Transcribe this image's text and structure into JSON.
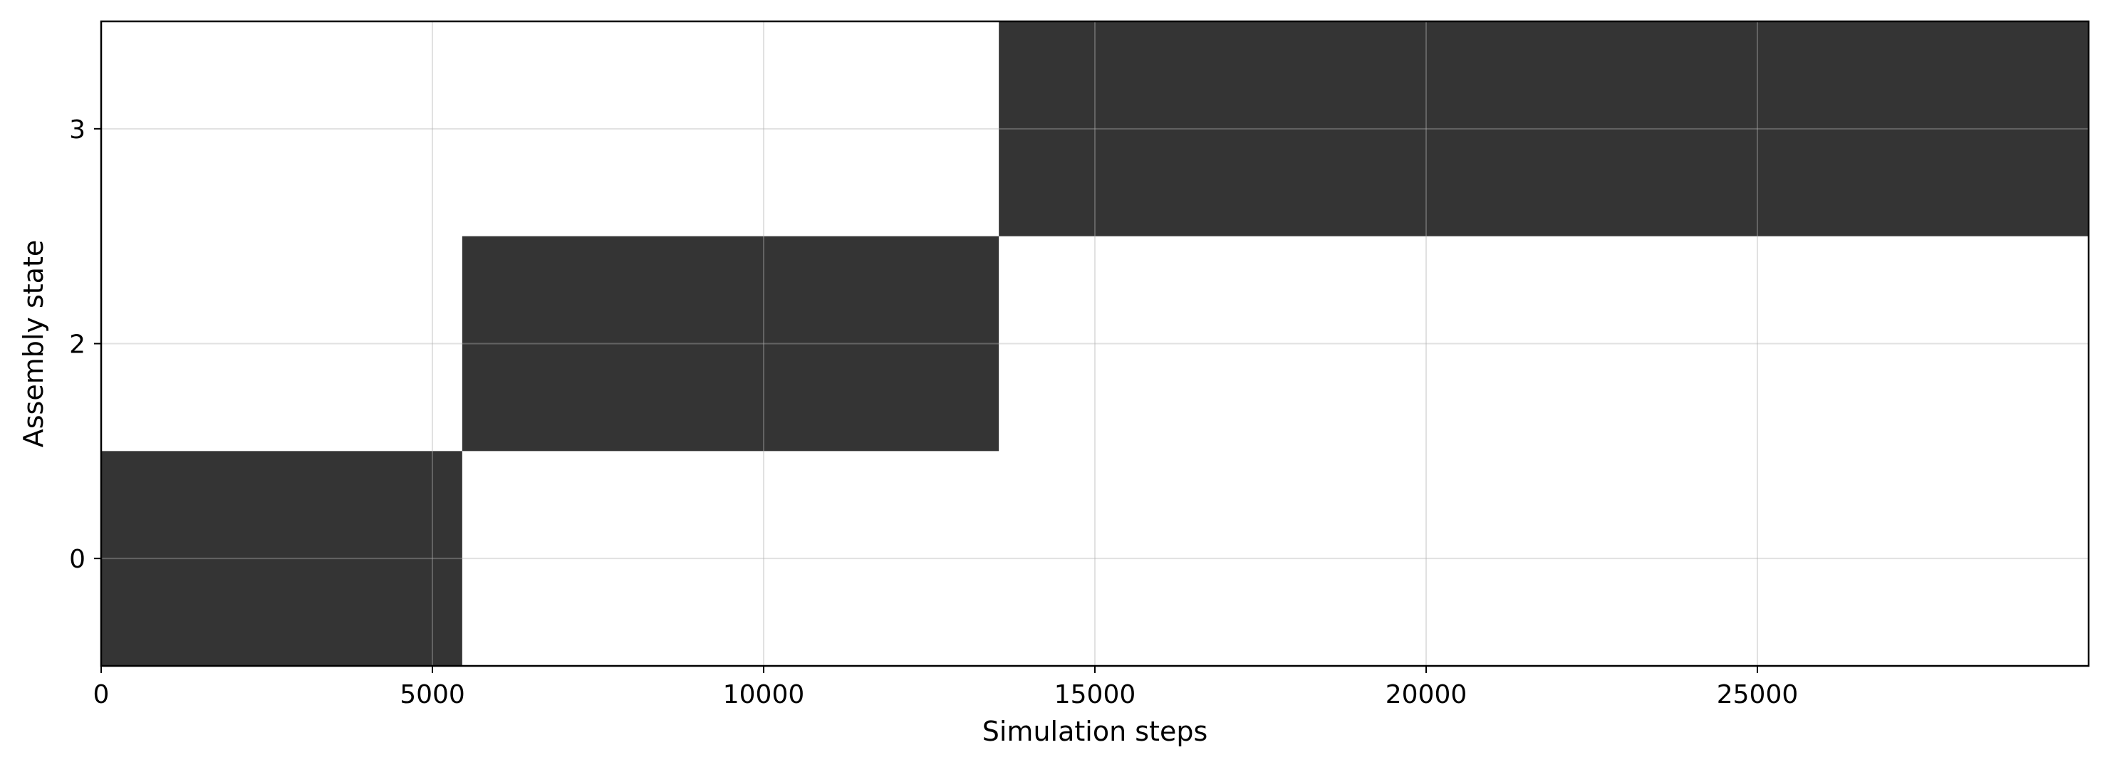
{
  "chart_data": {
    "type": "heatmap",
    "title": "",
    "xlabel": "Simulation steps",
    "ylabel": "Assembly state",
    "xlim": [
      0,
      30000
    ],
    "x_ticks": [
      0,
      5000,
      10000,
      15000,
      20000,
      25000
    ],
    "y_tick_labels": [
      "0",
      "2",
      "3"
    ],
    "grid": true,
    "legend": "none",
    "cell_color": "#343434",
    "background_color": "#ffffff",
    "occupied_intervals": [
      {
        "state": "0",
        "x_start": 0,
        "x_end": 5450
      },
      {
        "state": "2",
        "x_start": 5450,
        "x_end": 13550
      },
      {
        "state": "3",
        "x_start": 13550,
        "x_end": 30000
      }
    ]
  }
}
